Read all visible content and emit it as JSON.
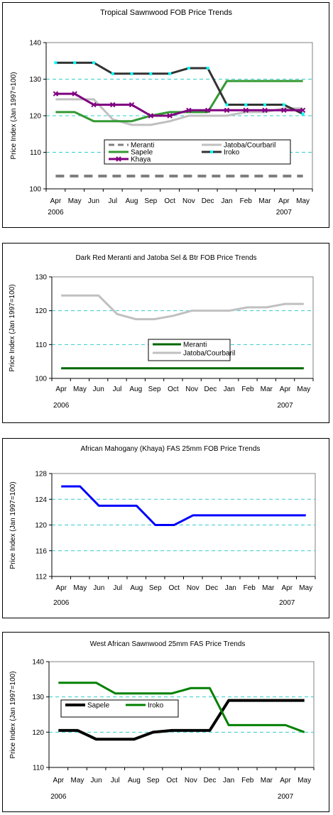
{
  "chart_data": [
    {
      "type": "line",
      "title": "Tropical Sawnwood FOB Price Trends",
      "ylabel": "Price Index (Jan 1997=100)",
      "categories": [
        "Apr",
        "May",
        "Jun",
        "Jul",
        "Aug",
        "Sep",
        "Oct",
        "Nov",
        "Dec",
        "Jan",
        "Feb",
        "Mar",
        "Apr",
        "May"
      ],
      "year_labels": [
        {
          "label": "2006",
          "at": 0
        },
        {
          "label": "2007",
          "at": 12
        }
      ],
      "ylim": [
        100,
        140
      ],
      "yticks": [
        100,
        110,
        120,
        130,
        140
      ],
      "grid": "dashed-horizontal",
      "legend": {
        "position": "center",
        "columns": 2
      },
      "series": [
        {
          "name": "Meranti",
          "color": "#808080",
          "style": "dashed",
          "marker": "none",
          "values": [
            103.5,
            103.5,
            103.5,
            103.5,
            103.5,
            103.5,
            103.5,
            103.5,
            103.5,
            103.5,
            103.5,
            103.5,
            103.5,
            103.5
          ]
        },
        {
          "name": "Jatoba/Courbaril",
          "color": "#c0c0c0",
          "style": "solid",
          "marker": "none",
          "values": [
            124.5,
            124.5,
            124.5,
            119.0,
            117.5,
            117.5,
            118.5,
            120.0,
            120.0,
            120.0,
            121.0,
            121.0,
            122.0,
            122.0
          ]
        },
        {
          "name": "Sapele",
          "color": "#339933",
          "style": "solid",
          "marker": "none",
          "values": [
            121.0,
            121.0,
            118.5,
            118.5,
            118.5,
            120.0,
            121.0,
            121.0,
            121.0,
            129.5,
            129.5,
            129.5,
            129.5,
            129.5
          ]
        },
        {
          "name": "Iroko",
          "color": "#333333",
          "style": "solid",
          "marker": "square",
          "marker_color": "#00ffff",
          "values": [
            134.5,
            134.5,
            134.5,
            131.5,
            131.5,
            131.5,
            131.5,
            133.0,
            133.0,
            123.0,
            123.0,
            123.0,
            123.0,
            120.5
          ]
        },
        {
          "name": "Khaya",
          "color": "#800080",
          "style": "solid",
          "marker": "x",
          "values": [
            126.0,
            126.0,
            123.0,
            123.0,
            123.0,
            120.0,
            120.0,
            121.5,
            121.5,
            121.5,
            121.5,
            121.5,
            121.5,
            121.5
          ]
        }
      ]
    },
    {
      "type": "line",
      "title": "Dark Red Meranti and Jatoba Sel & Btr FOB Price Trends",
      "ylabel": "Price Index (Jan 1997=100)",
      "categories": [
        "Apr",
        "May",
        "Jun",
        "Jul",
        "Aug",
        "Sep",
        "Oct",
        "Nov",
        "Dec",
        "Jan",
        "Feb",
        "Mar",
        "Apr",
        "May"
      ],
      "year_labels": [
        {
          "label": "2006",
          "at": 0
        },
        {
          "label": "2007",
          "at": 12
        }
      ],
      "ylim": [
        100,
        130
      ],
      "yticks": [
        100,
        110,
        120,
        130
      ],
      "grid": "dashed-horizontal",
      "legend": {
        "position": "center-left",
        "columns": 1
      },
      "series": [
        {
          "name": "Meranti",
          "color": "#006600",
          "style": "solid",
          "marker": "none",
          "values": [
            103.0,
            103.0,
            103.0,
            103.0,
            103.0,
            103.0,
            103.0,
            103.0,
            103.0,
            103.0,
            103.0,
            103.0,
            103.0,
            103.0
          ]
        },
        {
          "name": "Jatoba/Courbaril",
          "color": "#c0c0c0",
          "style": "solid",
          "marker": "none",
          "values": [
            124.5,
            124.5,
            124.5,
            119.0,
            117.5,
            117.5,
            118.5,
            120.0,
            120.0,
            120.0,
            121.0,
            121.0,
            122.0,
            122.0
          ]
        }
      ]
    },
    {
      "type": "line",
      "title": "African Mahogany (Khaya) FAS 25mm FOB Price Trends",
      "ylabel": "Price Index (Jan 1997=100)",
      "categories": [
        "Apr",
        "May",
        "Jun",
        "Jul",
        "Aug",
        "Sep",
        "Oct",
        "Nov",
        "Dec",
        "Jan",
        "Feb",
        "Mar",
        "Apr",
        "May"
      ],
      "year_labels": [
        {
          "label": "2006",
          "at": 0
        },
        {
          "label": "2007",
          "at": 12
        }
      ],
      "ylim": [
        112,
        128
      ],
      "yticks": [
        112,
        116,
        120,
        124,
        128
      ],
      "grid": "dashed-horizontal",
      "legend": null,
      "series": [
        {
          "name": "",
          "color": "#0000ff",
          "style": "solid",
          "marker": "none",
          "values": [
            126.0,
            126.0,
            123.0,
            123.0,
            123.0,
            120.0,
            120.0,
            121.5,
            121.5,
            121.5,
            121.5,
            121.5,
            121.5,
            121.5
          ]
        }
      ]
    },
    {
      "type": "line",
      "title": "West African Sawnwood 25mm FAS Price Trends",
      "ylabel": "Price Index (Jan 1997=100)",
      "categories": [
        "Apr",
        "May",
        "Jun",
        "Jul",
        "Aug",
        "Sep",
        "Oct",
        "Nov",
        "Dec",
        "Jan",
        "Feb",
        "Mar",
        "Apr",
        "May"
      ],
      "year_labels": [
        {
          "label": "2006",
          "at": 0
        },
        {
          "label": "2007",
          "at": 12
        }
      ],
      "ylim": [
        110,
        140
      ],
      "yticks": [
        110,
        120,
        130,
        140
      ],
      "grid": "dashed-horizontal",
      "legend": {
        "position": "upper-left",
        "columns": 2
      },
      "series": [
        {
          "name": "Sapele",
          "color": "#000000",
          "style": "bold",
          "marker": "none",
          "values": [
            120.5,
            120.5,
            118.0,
            118.0,
            118.0,
            120.0,
            120.5,
            120.5,
            120.5,
            129.0,
            129.0,
            129.0,
            129.0,
            129.0
          ]
        },
        {
          "name": "Iroko",
          "color": "#008000",
          "style": "solid",
          "marker": "none",
          "values": [
            134.0,
            134.0,
            134.0,
            131.0,
            131.0,
            131.0,
            131.0,
            132.5,
            132.5,
            122.0,
            122.0,
            122.0,
            122.0,
            120.0
          ]
        }
      ]
    }
  ]
}
